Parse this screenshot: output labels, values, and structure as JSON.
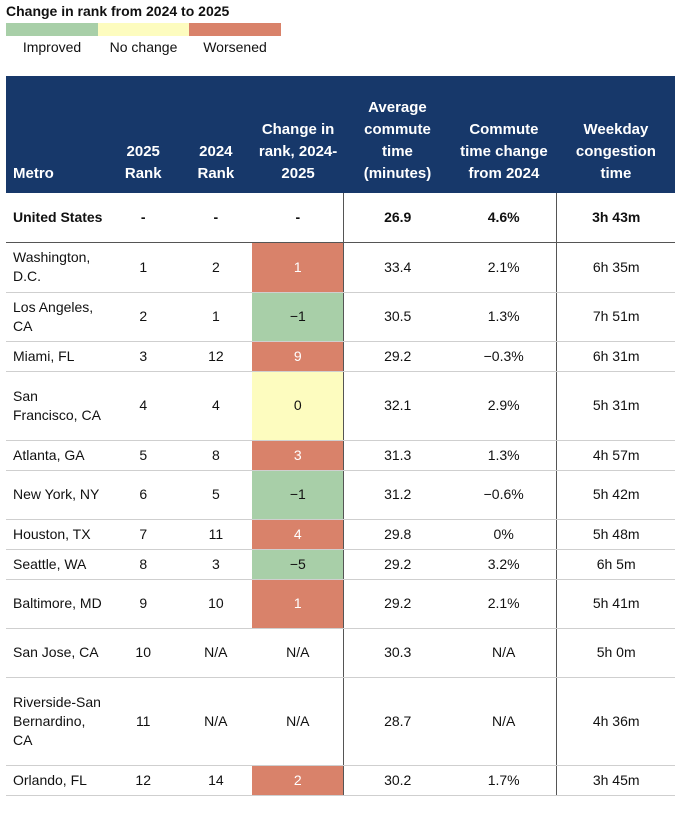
{
  "legend": {
    "title": "Change in rank from 2024 to 2025",
    "items": [
      {
        "label": "Improved",
        "color": "#a8cfa8"
      },
      {
        "label": "No change",
        "color": "#fdfcbf"
      },
      {
        "label": "Worsened",
        "color": "#d9826a"
      }
    ]
  },
  "chart_data": {
    "type": "table",
    "headers": {
      "metro": "Metro",
      "rank2025": "2025 Rank",
      "rank2024": "2024 Rank",
      "change": "Change in rank, 2024-2025",
      "commute": "Average commute time (minutes)",
      "commute_change": "Commute time change from 2024",
      "congestion": "Weekday congestion time"
    },
    "summary_row": {
      "metro": "United States",
      "rank2025": "-",
      "rank2024": "-",
      "change": "-",
      "commute": "26.9",
      "commute_change": "4.6%",
      "congestion": "3h 43m"
    },
    "rows": [
      {
        "metro": "Washington, D.C.",
        "rank2025": "1",
        "rank2024": "2",
        "change": "1",
        "status": "worsened",
        "commute": "33.4",
        "commute_change": "2.1%",
        "congestion": "6h 35m"
      },
      {
        "metro": "Los Angeles, CA",
        "rank2025": "2",
        "rank2024": "1",
        "change": "−1",
        "status": "improved",
        "commute": "30.5",
        "commute_change": "1.3%",
        "congestion": "7h 51m"
      },
      {
        "metro": "Miami, FL",
        "rank2025": "3",
        "rank2024": "12",
        "change": "9",
        "status": "worsened",
        "commute": "29.2",
        "commute_change": "−0.3%",
        "congestion": "6h 31m"
      },
      {
        "metro": "San Francisco, CA",
        "rank2025": "4",
        "rank2024": "4",
        "change": "0",
        "status": "nochange",
        "commute": "32.1",
        "commute_change": "2.9%",
        "congestion": "5h 31m"
      },
      {
        "metro": "Atlanta, GA",
        "rank2025": "5",
        "rank2024": "8",
        "change": "3",
        "status": "worsened",
        "commute": "31.3",
        "commute_change": "1.3%",
        "congestion": "4h 57m"
      },
      {
        "metro": "New York, NY",
        "rank2025": "6",
        "rank2024": "5",
        "change": "−1",
        "status": "improved",
        "commute": "31.2",
        "commute_change": "−0.6%",
        "congestion": "5h 42m"
      },
      {
        "metro": "Houston, TX",
        "rank2025": "7",
        "rank2024": "11",
        "change": "4",
        "status": "worsened",
        "commute": "29.8",
        "commute_change": "0%",
        "congestion": "5h 48m"
      },
      {
        "metro": "Seattle, WA",
        "rank2025": "8",
        "rank2024": "3",
        "change": "−5",
        "status": "improved",
        "commute": "29.2",
        "commute_change": "3.2%",
        "congestion": "6h 5m"
      },
      {
        "metro": "Baltimore, MD",
        "rank2025": "9",
        "rank2024": "10",
        "change": "1",
        "status": "worsened",
        "commute": "29.2",
        "commute_change": "2.1%",
        "congestion": "5h 41m"
      },
      {
        "metro": "San Jose, CA",
        "rank2025": "10",
        "rank2024": "N/A",
        "change": "N/A",
        "status": "none",
        "commute": "30.3",
        "commute_change": "N/A",
        "congestion": "5h 0m"
      },
      {
        "metro": "Riverside-San Bernardino, CA",
        "rank2025": "11",
        "rank2024": "N/A",
        "change": "N/A",
        "status": "none",
        "commute": "28.7",
        "commute_change": "N/A",
        "congestion": "4h 36m"
      },
      {
        "metro": "Orlando, FL",
        "rank2025": "12",
        "rank2024": "14",
        "change": "2",
        "status": "worsened",
        "commute": "30.2",
        "commute_change": "1.7%",
        "congestion": "3h 45m"
      }
    ]
  }
}
